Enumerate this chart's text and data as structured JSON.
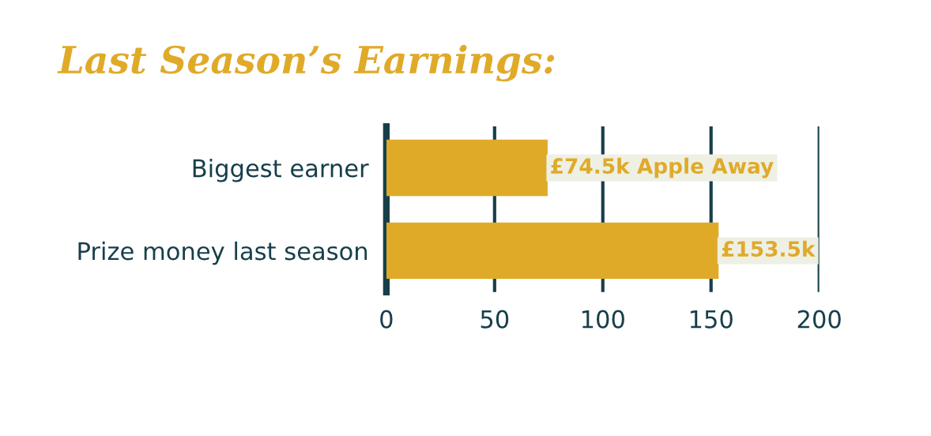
{
  "chart_data": {
    "type": "bar",
    "orientation": "horizontal",
    "title": "Last Season’s Earnings:",
    "categories": [
      "Biggest earner",
      "Prize money last season"
    ],
    "values": [
      74.5,
      153.5
    ],
    "color": "#e0aa29",
    "value_labels": [
      "£74.5k Apple Away",
      "£153.5k"
    ],
    "xlim": [
      0,
      200
    ],
    "xticks": [
      0,
      50,
      100,
      150,
      200
    ],
    "grid": "x"
  }
}
